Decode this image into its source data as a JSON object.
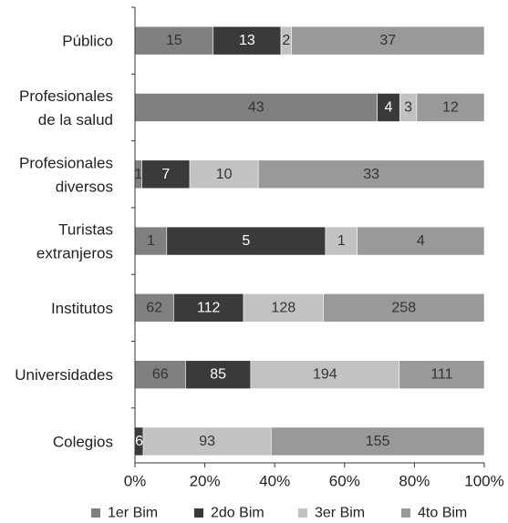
{
  "chart_data": {
    "type": "bar",
    "orientation": "horizontal",
    "stacked": "percent",
    "categories": [
      [
        "Público"
      ],
      [
        "Profesionales",
        "de la salud"
      ],
      [
        "Profesionales",
        "diversos"
      ],
      [
        "Turistas",
        "extranjeros"
      ],
      [
        "Institutos"
      ],
      [
        "Universidades"
      ],
      [
        "Colegios"
      ]
    ],
    "series": [
      {
        "name": "1er Bim",
        "color": "#808080",
        "label_color": "#333333",
        "values": [
          15,
          43,
          1,
          1,
          62,
          66,
          0
        ]
      },
      {
        "name": "2do Bim",
        "color": "#3a3a3a",
        "label_color": "#ffffff",
        "values": [
          13,
          4,
          7,
          5,
          112,
          85,
          6
        ]
      },
      {
        "name": "3er Bim",
        "color": "#c2c2c2",
        "label_color": "#333333",
        "values": [
          2,
          3,
          10,
          1,
          128,
          194,
          93
        ]
      },
      {
        "name": "4to Bim",
        "color": "#999999",
        "label_color": "#333333",
        "values": [
          37,
          12,
          33,
          4,
          258,
          111,
          155
        ]
      }
    ],
    "x_ticks": [
      "0%",
      "20%",
      "40%",
      "60%",
      "80%",
      "100%"
    ],
    "xlim": [
      0,
      100
    ],
    "legend_position": "bottom",
    "grid": false
  }
}
